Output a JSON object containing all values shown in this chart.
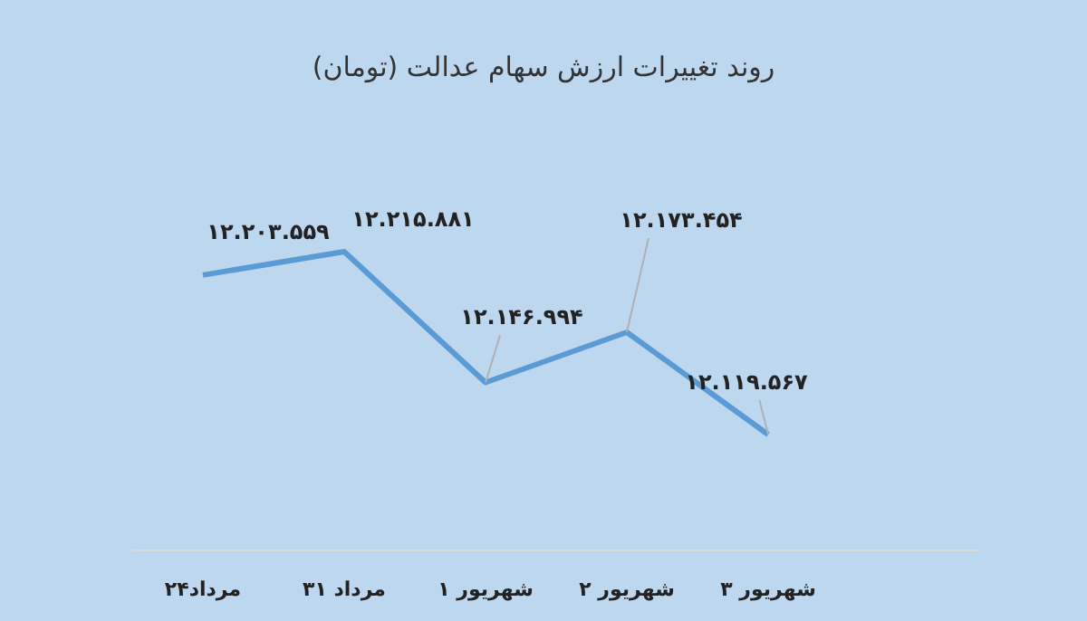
{
  "chart_data": {
    "type": "line",
    "title": "روند تغییرات ارزش سهام عدالت (تومان)",
    "categories": [
      "۲۴مرداد",
      "۳۱ مرداد",
      "۱ شهریور",
      "۲ شهریور",
      "۳ شهریور"
    ],
    "series": [
      {
        "color": "#5b9bd5",
        "values": [
          12203559,
          12215881,
          12146994,
          12173454,
          12119567
        ],
        "value_labels": [
          "۱۲.۲۰۳.۵۵۹",
          "۱۲.۲۱۵.۸۸۱",
          "۱۲.۱۴۶.۹۹۴",
          "۱۲.۱۷۳.۴۵۴",
          "۱۲.۱۱۹.۵۶۷"
        ]
      }
    ],
    "grid": false,
    "marker": "none",
    "line_style": "solid"
  }
}
